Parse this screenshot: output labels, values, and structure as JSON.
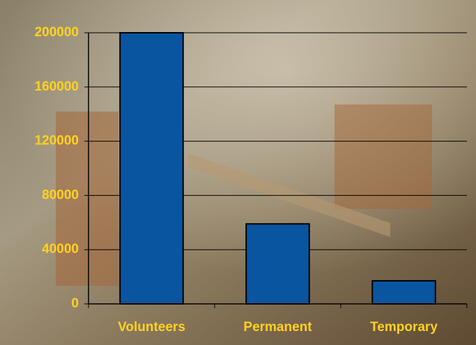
{
  "chart_data": {
    "type": "bar",
    "categories": [
      "Volunteers",
      "Permanent",
      "Temporary"
    ],
    "values": [
      200000,
      59000,
      17000
    ],
    "color": "#0a55a0",
    "ylim": [
      0,
      200000
    ],
    "yticks": [
      0,
      40000,
      80000,
      120000,
      160000,
      200000
    ],
    "grid": true
  }
}
